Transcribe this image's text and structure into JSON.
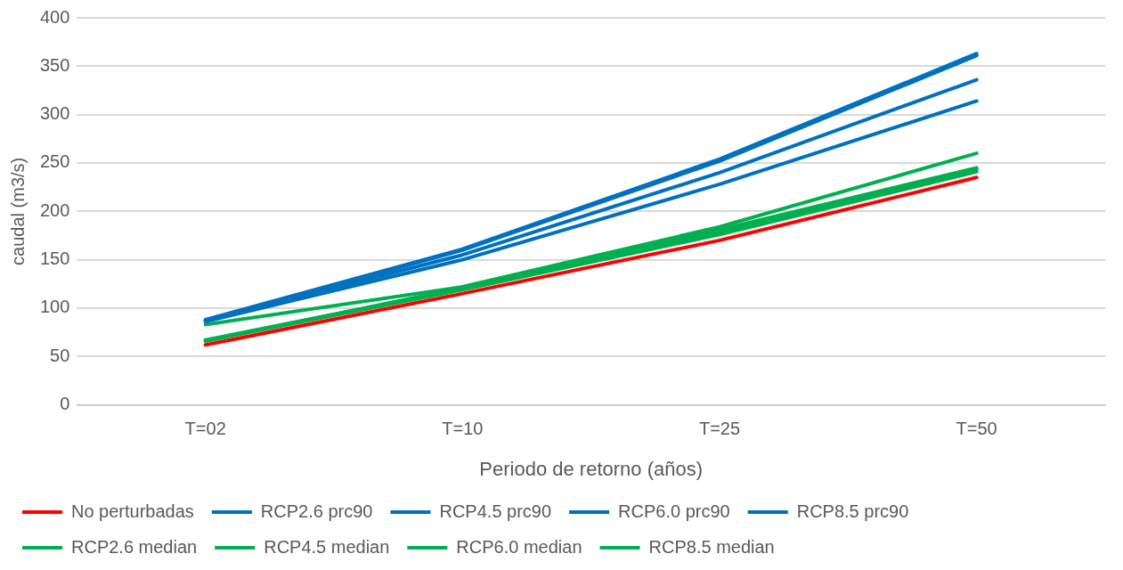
{
  "chart_data": {
    "type": "line",
    "xlabel": "Periodo de retorno (años)",
    "ylabel": "caudal (m3/s)",
    "categories": [
      "T=02",
      "T=10",
      "T=25",
      "T=50"
    ],
    "ylim": [
      0,
      400
    ],
    "yticks": [
      0,
      50,
      100,
      150,
      200,
      250,
      300,
      350,
      400
    ],
    "grid": "y",
    "legend": "bottom",
    "marker": "none",
    "line_style": "solid",
    "series": [
      {
        "name": "No perturbadas",
        "color": "#ff0000",
        "values": [
          62,
          115,
          170,
          235
        ]
      },
      {
        "name": "RCP2.6 prc90",
        "color": "#0070c0",
        "values": [
          86,
          150,
          228,
          314
        ]
      },
      {
        "name": "RCP4.5 prc90",
        "color": "#0070c0",
        "values": [
          87,
          155,
          240,
          336
        ]
      },
      {
        "name": "RCP6.0 prc90",
        "color": "#0070c0",
        "values": [
          87,
          160,
          252,
          361
        ]
      },
      {
        "name": "RCP8.5 prc90",
        "color": "#0070c0",
        "values": [
          88,
          161,
          254,
          363
        ]
      },
      {
        "name": "RCP2.6 median",
        "color": "#00b050",
        "values": [
          66,
          119,
          176,
          241
        ]
      },
      {
        "name": "RCP4.5 median",
        "color": "#00b050",
        "values": [
          67,
          120,
          179,
          243
        ]
      },
      {
        "name": "RCP6.0 median",
        "color": "#00b050",
        "values": [
          66,
          121,
          181,
          245
        ]
      },
      {
        "name": "RCP8.5 median",
        "color": "#00b050",
        "values": [
          83,
          122,
          184,
          260
        ]
      }
    ]
  }
}
